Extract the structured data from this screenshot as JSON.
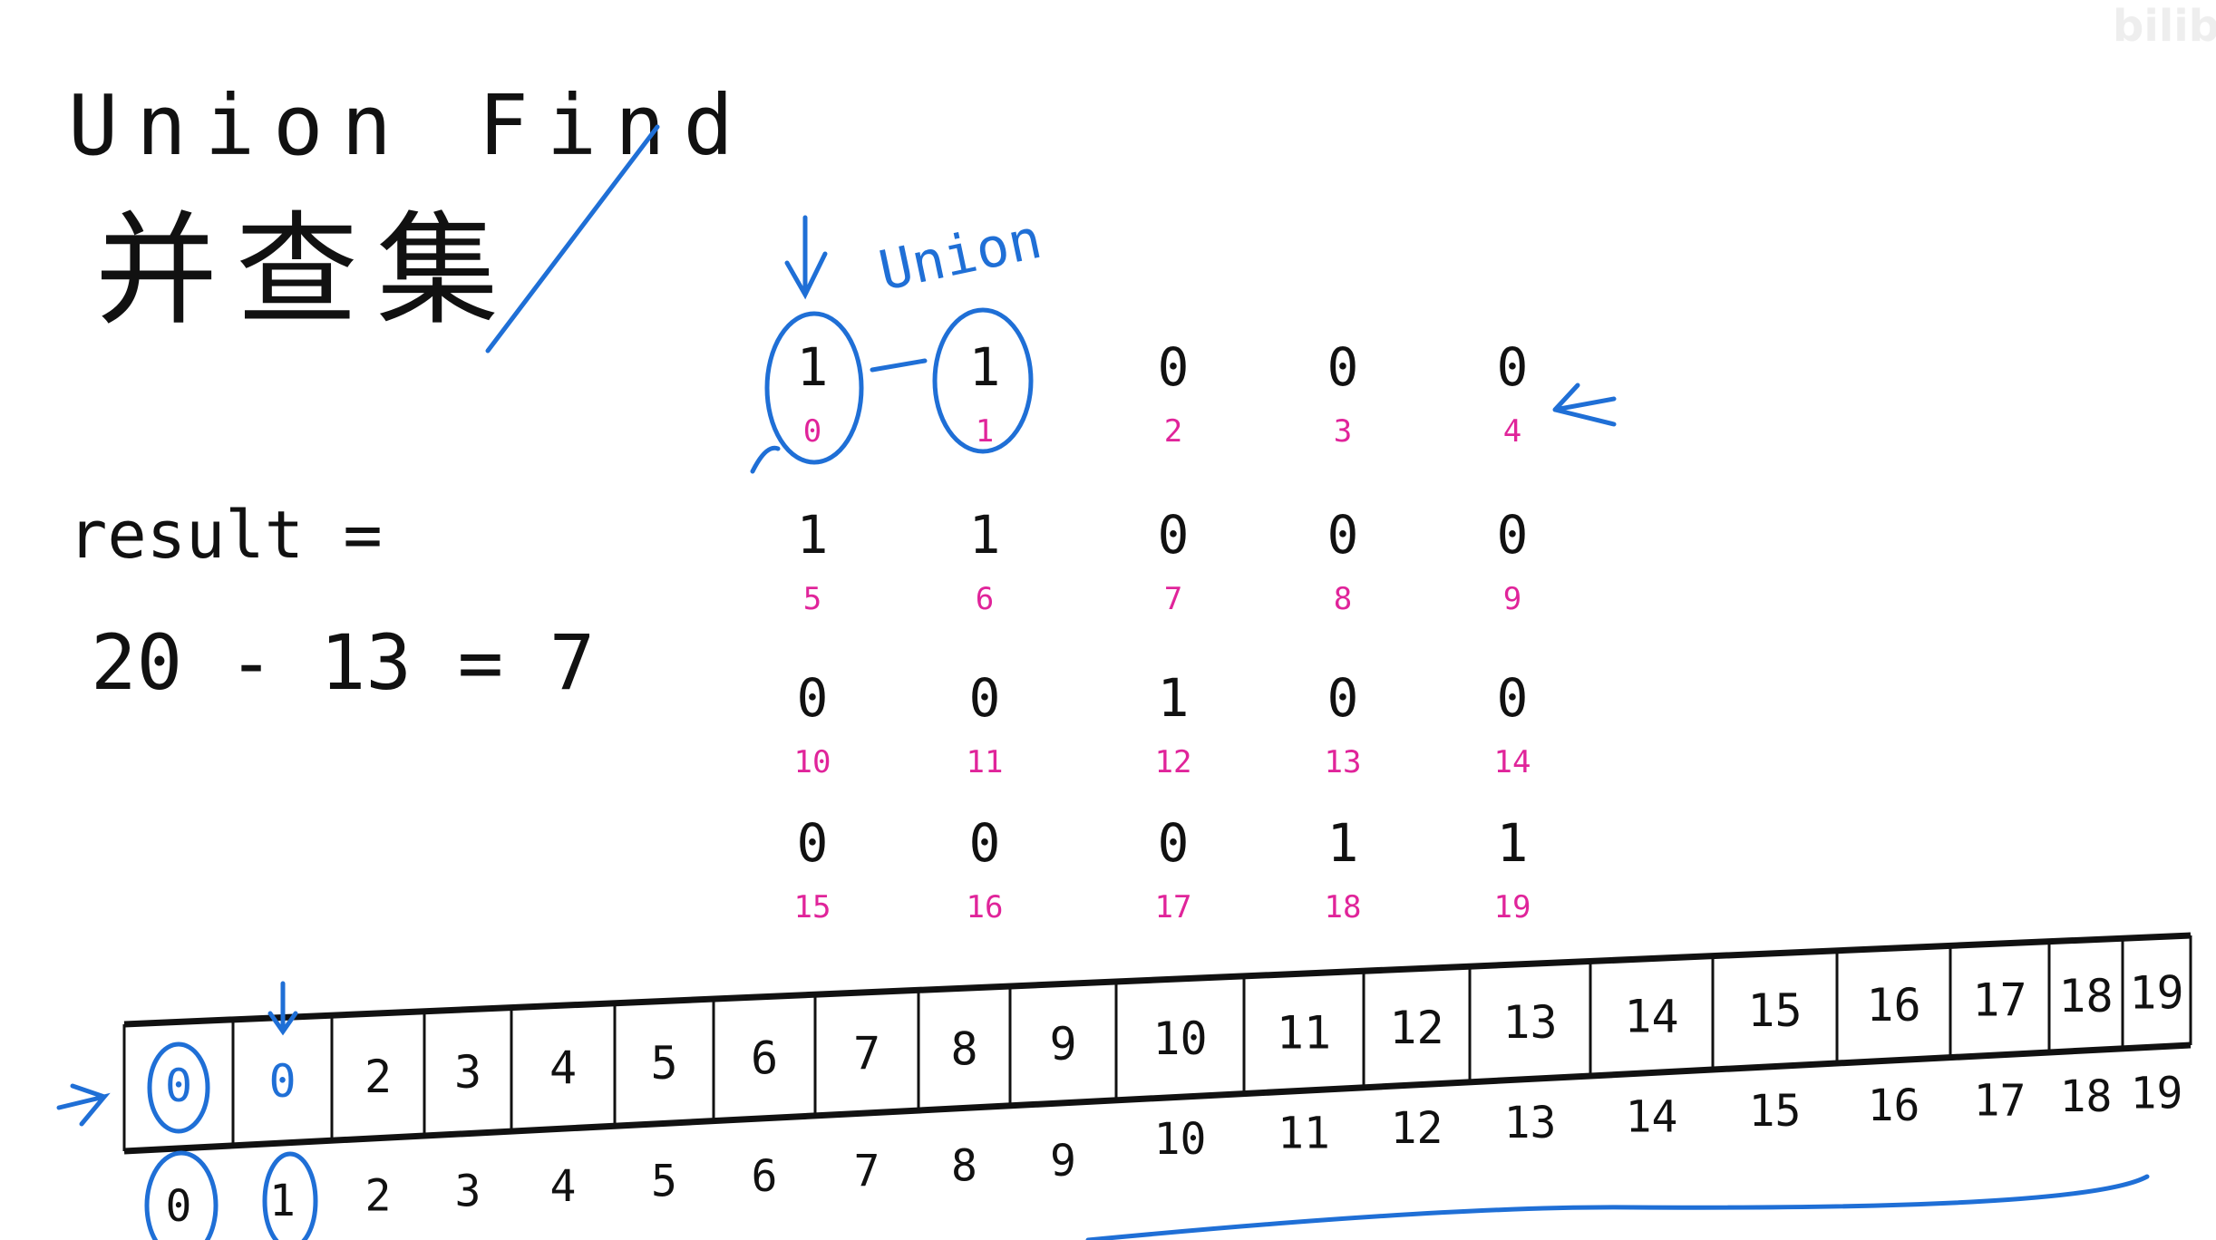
{
  "title": "Union Find",
  "title_cn": "并查集",
  "result_label": "result =",
  "result_expr": "20 - 13 = 7",
  "union_label": "Union",
  "watermark": "bilibili",
  "colors": {
    "ink": "#111111",
    "annotation": "#1f6fd6",
    "index": "#e0249a"
  },
  "grid": {
    "values": [
      1,
      1,
      0,
      0,
      0,
      1,
      1,
      0,
      0,
      0,
      0,
      0,
      1,
      0,
      0,
      0,
      0,
      0,
      1,
      1
    ],
    "indices": [
      0,
      1,
      2,
      3,
      4,
      5,
      6,
      7,
      8,
      9,
      10,
      11,
      12,
      13,
      14,
      15,
      16,
      17,
      18,
      19
    ]
  },
  "array": {
    "values": [
      0,
      0,
      2,
      3,
      4,
      5,
      6,
      7,
      8,
      9,
      10,
      11,
      12,
      13,
      14,
      15,
      16,
      17,
      18,
      19
    ],
    "indices": [
      0,
      1,
      2,
      3,
      4,
      5,
      6,
      7,
      8,
      9,
      10,
      11,
      12,
      13,
      14,
      15,
      16,
      17,
      18,
      19
    ]
  }
}
